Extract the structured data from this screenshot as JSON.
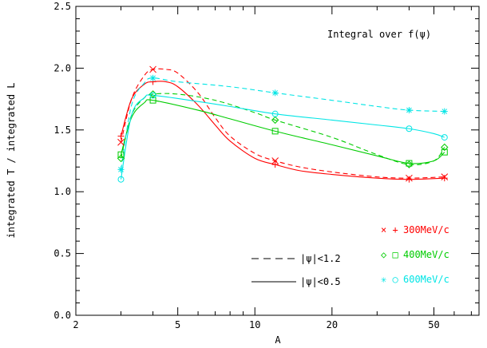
{
  "chart_data": {
    "type": "line",
    "title": "",
    "xlabel": "A",
    "ylabel": "integrated T / integrated L",
    "xscale": "log",
    "xlim": [
      2,
      75
    ],
    "ylim": [
      0.0,
      2.5
    ],
    "xticks": [
      {
        "value": 2,
        "label": "2"
      },
      {
        "value": 5,
        "label": "5"
      },
      {
        "value": 10,
        "label": "10"
      },
      {
        "value": 20,
        "label": "20"
      },
      {
        "value": 50,
        "label": "50"
      }
    ],
    "yticks": [
      {
        "value": 0.0,
        "label": "0.0"
      },
      {
        "value": 0.5,
        "label": "0.5"
      },
      {
        "value": 1.0,
        "label": "1.0"
      },
      {
        "value": 1.5,
        "label": "1.5"
      },
      {
        "value": 2.0,
        "label": "2.0"
      },
      {
        "value": 2.5,
        "label": "2.5"
      }
    ],
    "annotation": "Integral over f(ψ)",
    "legend_styles": [
      {
        "label": "|ψ|<1.2",
        "dash": "dashed"
      },
      {
        "label": "|ψ|<0.5",
        "dash": "solid"
      }
    ],
    "legend_momenta": [
      {
        "symbols": "× +",
        "label": "300MeV/c",
        "color": "#ff0000"
      },
      {
        "symbols": "◇ □",
        "label": "400MeV/c",
        "color": "#00cc00"
      },
      {
        "symbols": "✳ ○",
        "label": "600MeV/c",
        "color": "#00e5e5"
      }
    ],
    "series": [
      {
        "momentum": "300MeV/c",
        "cut": "|ψ|<1.2",
        "color": "#ff0000",
        "dash": "dashed",
        "marker": "x",
        "points": [
          {
            "x": 3,
            "y": 1.4
          },
          {
            "x": 4,
            "y": 1.99
          },
          {
            "x": 12,
            "y": 1.25
          },
          {
            "x": 40,
            "y": 1.11
          },
          {
            "x": 55,
            "y": 1.12
          }
        ],
        "curve": [
          {
            "x": 3,
            "y": 1.4
          },
          {
            "x": 3.3,
            "y": 1.75
          },
          {
            "x": 3.7,
            "y": 1.94
          },
          {
            "x": 4,
            "y": 1.99
          },
          {
            "x": 4.5,
            "y": 1.99
          },
          {
            "x": 5,
            "y": 1.96
          },
          {
            "x": 6,
            "y": 1.8
          },
          {
            "x": 7,
            "y": 1.6
          },
          {
            "x": 8,
            "y": 1.45
          },
          {
            "x": 10,
            "y": 1.31
          },
          {
            "x": 12,
            "y": 1.25
          },
          {
            "x": 15,
            "y": 1.2
          },
          {
            "x": 20,
            "y": 1.16
          },
          {
            "x": 30,
            "y": 1.12
          },
          {
            "x": 40,
            "y": 1.11
          },
          {
            "x": 55,
            "y": 1.12
          }
        ]
      },
      {
        "momentum": "300MeV/c",
        "cut": "|ψ|<0.5",
        "color": "#ff0000",
        "dash": "solid",
        "marker": "+",
        "points": [
          {
            "x": 3,
            "y": 1.45
          },
          {
            "x": 4,
            "y": 1.89
          },
          {
            "x": 12,
            "y": 1.22
          },
          {
            "x": 40,
            "y": 1.1
          },
          {
            "x": 55,
            "y": 1.11
          }
        ],
        "curve": [
          {
            "x": 3,
            "y": 1.45
          },
          {
            "x": 3.3,
            "y": 1.75
          },
          {
            "x": 3.7,
            "y": 1.87
          },
          {
            "x": 4,
            "y": 1.89
          },
          {
            "x": 4.5,
            "y": 1.89
          },
          {
            "x": 5,
            "y": 1.85
          },
          {
            "x": 6,
            "y": 1.7
          },
          {
            "x": 7,
            "y": 1.54
          },
          {
            "x": 8,
            "y": 1.41
          },
          {
            "x": 10,
            "y": 1.27
          },
          {
            "x": 12,
            "y": 1.22
          },
          {
            "x": 15,
            "y": 1.17
          },
          {
            "x": 20,
            "y": 1.14
          },
          {
            "x": 30,
            "y": 1.11
          },
          {
            "x": 40,
            "y": 1.1
          },
          {
            "x": 55,
            "y": 1.11
          }
        ]
      },
      {
        "momentum": "400MeV/c",
        "cut": "|ψ|<1.2",
        "color": "#00cc00",
        "dash": "dashed",
        "marker": "diamond",
        "points": [
          {
            "x": 3,
            "y": 1.27
          },
          {
            "x": 4,
            "y": 1.79
          },
          {
            "x": 12,
            "y": 1.58
          },
          {
            "x": 40,
            "y": 1.22
          },
          {
            "x": 55,
            "y": 1.36
          }
        ],
        "curve": [
          {
            "x": 3,
            "y": 1.27
          },
          {
            "x": 3.3,
            "y": 1.62
          },
          {
            "x": 3.7,
            "y": 1.76
          },
          {
            "x": 4,
            "y": 1.79
          },
          {
            "x": 5,
            "y": 1.79
          },
          {
            "x": 7,
            "y": 1.74
          },
          {
            "x": 10,
            "y": 1.64
          },
          {
            "x": 12,
            "y": 1.58
          },
          {
            "x": 20,
            "y": 1.44
          },
          {
            "x": 30,
            "y": 1.3
          },
          {
            "x": 40,
            "y": 1.22
          },
          {
            "x": 50,
            "y": 1.25
          },
          {
            "x": 55,
            "y": 1.36
          }
        ]
      },
      {
        "momentum": "400MeV/c",
        "cut": "|ψ|<0.5",
        "color": "#00cc00",
        "dash": "solid",
        "marker": "square",
        "points": [
          {
            "x": 3,
            "y": 1.3
          },
          {
            "x": 4,
            "y": 1.74
          },
          {
            "x": 12,
            "y": 1.49
          },
          {
            "x": 40,
            "y": 1.23
          },
          {
            "x": 55,
            "y": 1.32
          }
        ],
        "curve": [
          {
            "x": 3,
            "y": 1.3
          },
          {
            "x": 3.3,
            "y": 1.6
          },
          {
            "x": 3.7,
            "y": 1.72
          },
          {
            "x": 4,
            "y": 1.74
          },
          {
            "x": 6,
            "y": 1.66
          },
          {
            "x": 8,
            "y": 1.59
          },
          {
            "x": 12,
            "y": 1.49
          },
          {
            "x": 20,
            "y": 1.38
          },
          {
            "x": 30,
            "y": 1.29
          },
          {
            "x": 40,
            "y": 1.23
          },
          {
            "x": 50,
            "y": 1.25
          },
          {
            "x": 55,
            "y": 1.32
          }
        ]
      },
      {
        "momentum": "600MeV/c",
        "cut": "|ψ|<1.2",
        "color": "#00e5e5",
        "dash": "dashed",
        "marker": "asterisk",
        "points": [
          {
            "x": 3,
            "y": 1.18
          },
          {
            "x": 4,
            "y": 1.92
          },
          {
            "x": 12,
            "y": 1.8
          },
          {
            "x": 40,
            "y": 1.66
          },
          {
            "x": 55,
            "y": 1.65
          }
        ],
        "curve": [
          {
            "x": 3,
            "y": 1.18
          },
          {
            "x": 3.3,
            "y": 1.7
          },
          {
            "x": 3.7,
            "y": 1.88
          },
          {
            "x": 4,
            "y": 1.92
          },
          {
            "x": 5,
            "y": 1.89
          },
          {
            "x": 8,
            "y": 1.85
          },
          {
            "x": 12,
            "y": 1.8
          },
          {
            "x": 20,
            "y": 1.74
          },
          {
            "x": 30,
            "y": 1.69
          },
          {
            "x": 40,
            "y": 1.66
          },
          {
            "x": 55,
            "y": 1.65
          }
        ]
      },
      {
        "momentum": "600MeV/c",
        "cut": "|ψ|<0.5",
        "color": "#00e5e5",
        "dash": "solid",
        "marker": "circle",
        "points": [
          {
            "x": 3,
            "y": 1.1
          },
          {
            "x": 4,
            "y": 1.78
          },
          {
            "x": 12,
            "y": 1.63
          },
          {
            "x": 40,
            "y": 1.51
          },
          {
            "x": 55,
            "y": 1.44
          }
        ],
        "curve": [
          {
            "x": 3,
            "y": 1.1
          },
          {
            "x": 3.3,
            "y": 1.62
          },
          {
            "x": 3.7,
            "y": 1.76
          },
          {
            "x": 4,
            "y": 1.78
          },
          {
            "x": 6,
            "y": 1.73
          },
          {
            "x": 8,
            "y": 1.69
          },
          {
            "x": 12,
            "y": 1.63
          },
          {
            "x": 20,
            "y": 1.58
          },
          {
            "x": 30,
            "y": 1.54
          },
          {
            "x": 40,
            "y": 1.51
          },
          {
            "x": 50,
            "y": 1.47
          },
          {
            "x": 55,
            "y": 1.44
          }
        ]
      }
    ]
  }
}
